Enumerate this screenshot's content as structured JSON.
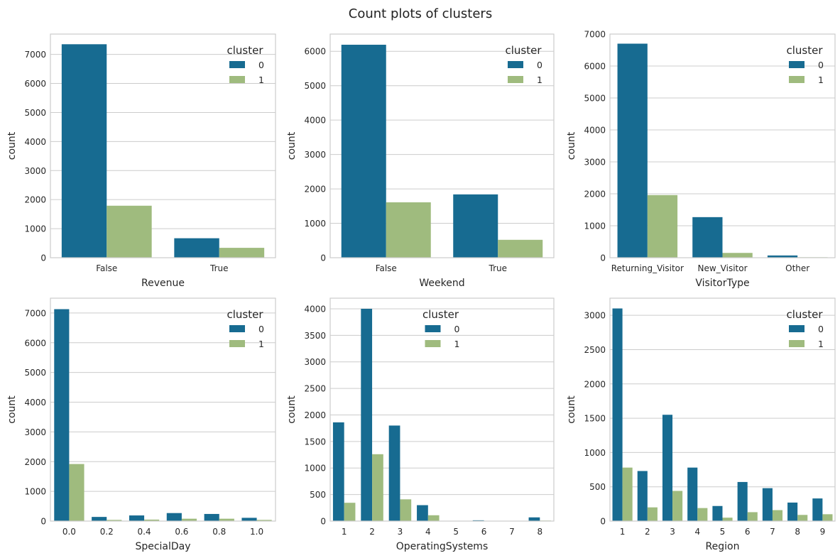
{
  "figure": {
    "title": "Count plots of clusters",
    "colors": {
      "cluster0": "#176b91",
      "cluster1": "#9fbb7e",
      "grid": "#cccccc",
      "spine": "#cccccc"
    }
  },
  "chart_data": [
    {
      "type": "bar",
      "xlabel": "Revenue",
      "ylabel": "count",
      "categories": [
        "False",
        "True"
      ],
      "ylim": [
        0,
        7700
      ],
      "yticks": [
        0,
        1000,
        2000,
        3000,
        4000,
        5000,
        6000,
        7000
      ],
      "legend": {
        "title": "cluster",
        "position": "top-right"
      },
      "series": [
        {
          "name": "0",
          "values": [
            7350,
            670
          ]
        },
        {
          "name": "1",
          "values": [
            1790,
            340
          ]
        }
      ]
    },
    {
      "type": "bar",
      "xlabel": "Weekend",
      "ylabel": "count",
      "categories": [
        "False",
        "True"
      ],
      "ylim": [
        0,
        6500
      ],
      "yticks": [
        0,
        1000,
        2000,
        3000,
        4000,
        5000,
        6000
      ],
      "legend": {
        "title": "cluster",
        "position": "top-right"
      },
      "series": [
        {
          "name": "0",
          "values": [
            6190,
            1840
          ]
        },
        {
          "name": "1",
          "values": [
            1610,
            520
          ]
        }
      ]
    },
    {
      "type": "bar",
      "xlabel": "VisitorType",
      "ylabel": "count",
      "categories": [
        "Returning_Visitor",
        "New_Visitor",
        "Other"
      ],
      "ylim": [
        0,
        7000
      ],
      "yticks": [
        0,
        1000,
        2000,
        3000,
        4000,
        5000,
        6000,
        7000
      ],
      "legend": {
        "title": "cluster",
        "position": "top-right"
      },
      "series": [
        {
          "name": "0",
          "values": [
            6700,
            1270,
            70
          ]
        },
        {
          "name": "1",
          "values": [
            1960,
            150,
            15
          ]
        }
      ]
    },
    {
      "type": "bar",
      "xlabel": "SpecialDay",
      "ylabel": "count",
      "categories": [
        "0.0",
        "0.2",
        "0.4",
        "0.6",
        "0.8",
        "1.0"
      ],
      "ylim": [
        0,
        7500
      ],
      "yticks": [
        0,
        1000,
        2000,
        3000,
        4000,
        5000,
        6000,
        7000
      ],
      "legend": {
        "title": "cluster",
        "position": "top-right"
      },
      "series": [
        {
          "name": "0",
          "values": [
            7130,
            140,
            190,
            270,
            240,
            110
          ]
        },
        {
          "name": "1",
          "values": [
            1920,
            40,
            50,
            80,
            80,
            40
          ]
        }
      ]
    },
    {
      "type": "bar",
      "xlabel": "OperatingSystems",
      "ylabel": "count",
      "categories": [
        "1",
        "2",
        "3",
        "4",
        "5",
        "6",
        "7",
        "8"
      ],
      "ylim": [
        0,
        4200
      ],
      "yticks": [
        0,
        500,
        1000,
        1500,
        2000,
        2500,
        3000,
        3500,
        4000
      ],
      "legend": {
        "title": "cluster",
        "position": "top-center"
      },
      "series": [
        {
          "name": "0",
          "values": [
            1860,
            4000,
            1800,
            300,
            5,
            15,
            5,
            70
          ]
        },
        {
          "name": "1",
          "values": [
            345,
            1260,
            410,
            110,
            2,
            5,
            2,
            10
          ]
        }
      ]
    },
    {
      "type": "bar",
      "xlabel": "Region",
      "ylabel": "count",
      "categories": [
        "1",
        "2",
        "3",
        "4",
        "5",
        "6",
        "7",
        "8",
        "9"
      ],
      "ylim": [
        0,
        3250
      ],
      "yticks": [
        0,
        500,
        1000,
        1500,
        2000,
        2500,
        3000
      ],
      "legend": {
        "title": "cluster",
        "position": "top-right"
      },
      "series": [
        {
          "name": "0",
          "values": [
            3100,
            730,
            1550,
            780,
            220,
            570,
            480,
            270,
            330
          ]
        },
        {
          "name": "1",
          "values": [
            780,
            200,
            440,
            190,
            50,
            130,
            160,
            90,
            100
          ]
        }
      ]
    }
  ]
}
